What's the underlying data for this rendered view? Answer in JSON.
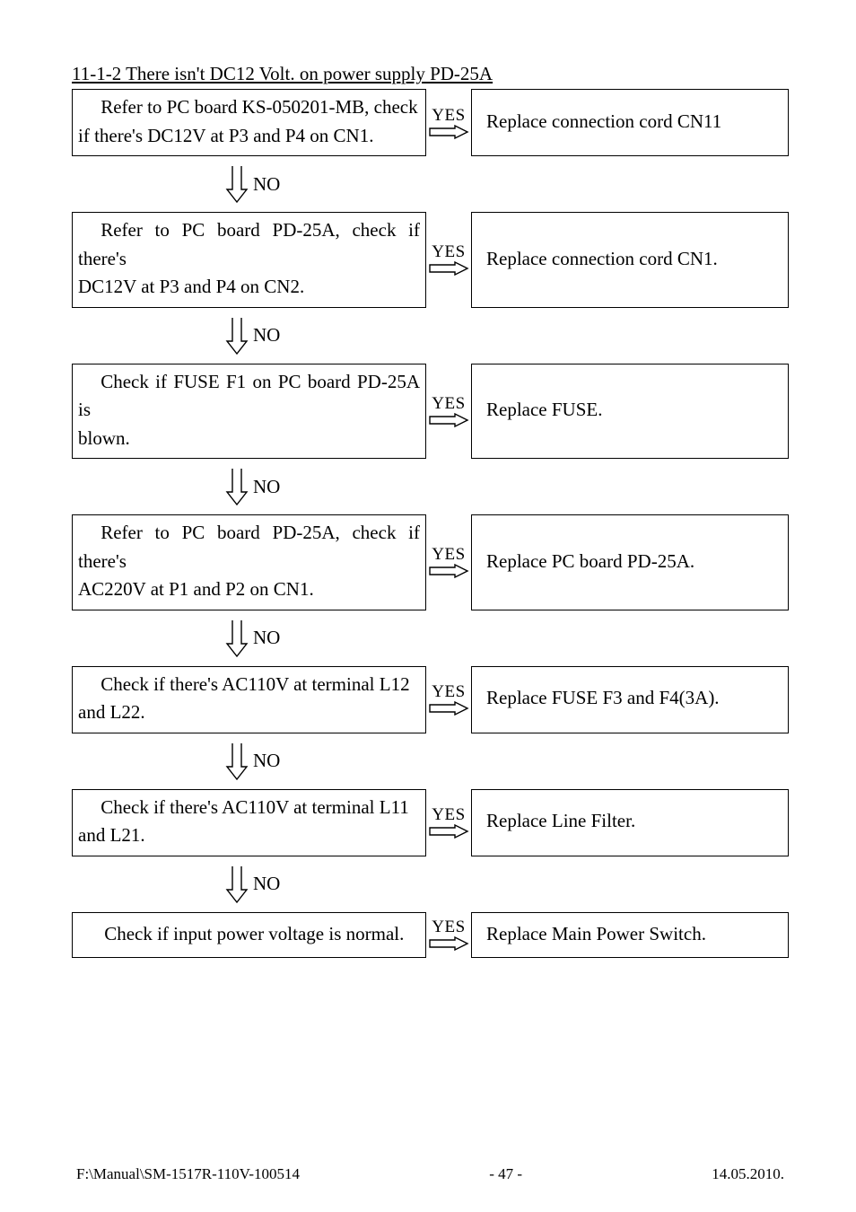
{
  "title": "11-1-2 There isn't DC12 Volt. on power supply PD-25A",
  "steps": [
    {
      "left_lines": [
        "Refer to PC board KS-050201-MB, check",
        "if there's DC12V at P3 and P4 on CN1."
      ],
      "indent_first": true,
      "right": "Replace connection cord CN11"
    },
    {
      "left_lines": [
        "Refer to PC board PD-25A, check if there's",
        "DC12V at P3 and P4 on CN2."
      ],
      "indent_first": true,
      "right": "Replace connection cord CN1."
    },
    {
      "left_lines": [
        "Check if FUSE F1 on PC board PD-25A is",
        "blown."
      ],
      "indent_first": true,
      "right": "Replace FUSE."
    },
    {
      "left_lines": [
        "Refer to PC board PD-25A, check if there's",
        "AC220V at P1 and P2 on CN1."
      ],
      "indent_first": true,
      "right": "Replace PC board PD-25A."
    },
    {
      "left_lines": [
        "Check if there's AC110V at terminal L12",
        "and L22."
      ],
      "indent_first": true,
      "right": "Replace FUSE F3 and F4(3A)."
    },
    {
      "left_lines": [
        "Check if there's AC110V at terminal L11",
        "and L21."
      ],
      "indent_first": true,
      "right": "Replace Line Filter."
    },
    {
      "left_lines": [
        "Check if input power voltage is normal."
      ],
      "indent_first": true,
      "single_line": true,
      "right": "Replace Main Power Switch."
    }
  ],
  "yes_label": "YES",
  "no_label": "NO",
  "arrows": {
    "down": {
      "stroke": "#000000",
      "stroke_width": 1.4
    },
    "right": {
      "stroke": "#000000",
      "stroke_width": 1.4
    }
  },
  "footer": {
    "left": "F:\\Manual\\SM-1517R-110V-100514",
    "center": "- 47 -",
    "right": "14.05.2010."
  }
}
